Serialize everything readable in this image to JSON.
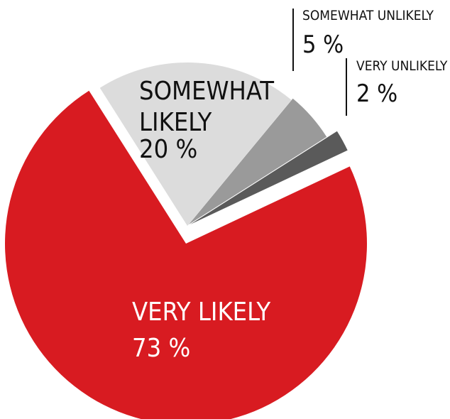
{
  "chart_data": {
    "type": "pie",
    "slices": [
      {
        "name": "VERY LIKELY",
        "value": 73,
        "value_label": "73 %",
        "color": "#d81b21",
        "label_color": "#ffffff"
      },
      {
        "name": "SOMEWHAT LIKELY",
        "value": 20,
        "value_label": "20 %",
        "color": "#dcdcdc",
        "label_color": "#111111"
      },
      {
        "name": "SOMEWHAT UNLIKELY",
        "value": 5,
        "value_label": "5 %",
        "color": "#9a9a9a",
        "label_color": "#111111"
      },
      {
        "name": "VERY UNLIKELY",
        "value": 2,
        "value_label": "2 %",
        "color": "#5a5a5a",
        "label_color": "#111111"
      }
    ],
    "exploded": true,
    "legend": "none"
  }
}
